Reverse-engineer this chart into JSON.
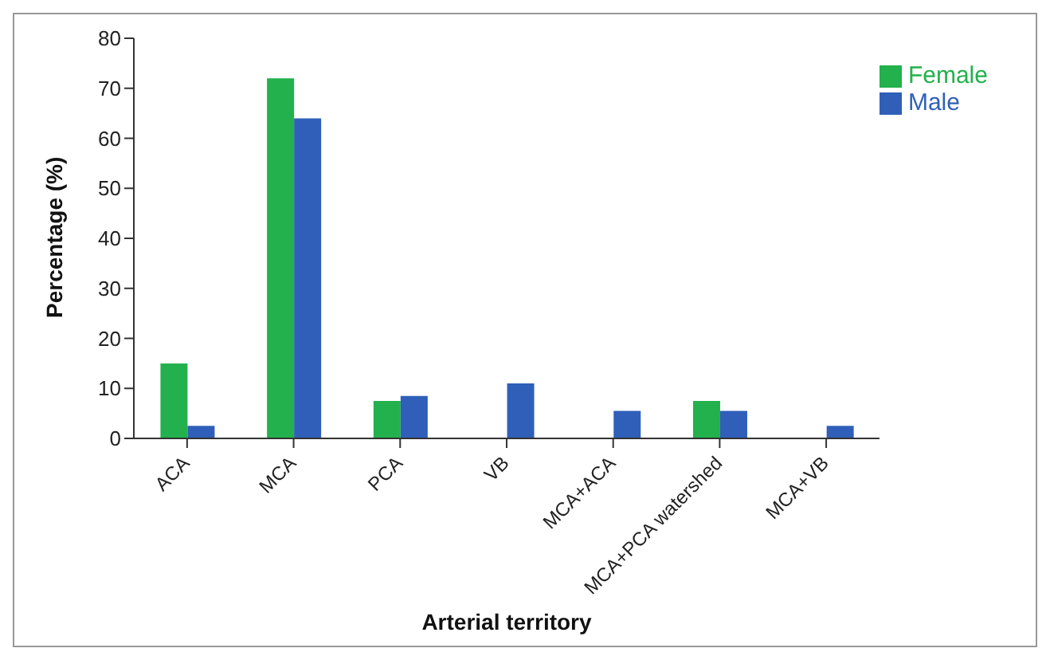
{
  "chart_data": {
    "type": "bar",
    "xlabel": "Arterial territory",
    "ylabel": "Percentage (%)",
    "categories": [
      "ACA",
      "MCA",
      "PCA",
      "VB",
      "MCA+ACA",
      "MCA+PCA watershed",
      "MCA+VB"
    ],
    "series": [
      {
        "name": "Female",
        "color": "#22b14c",
        "values": [
          15,
          72,
          7.5,
          0,
          0,
          7.5,
          0
        ]
      },
      {
        "name": "Male",
        "color": "#2f5fb8",
        "values": [
          2.5,
          64,
          8.5,
          11,
          5.5,
          5.5,
          2.5
        ]
      }
    ],
    "ylim": [
      0,
      80
    ],
    "yticks": [
      0,
      10,
      20,
      30,
      40,
      50,
      60,
      70,
      80
    ],
    "legend": "top right"
  }
}
